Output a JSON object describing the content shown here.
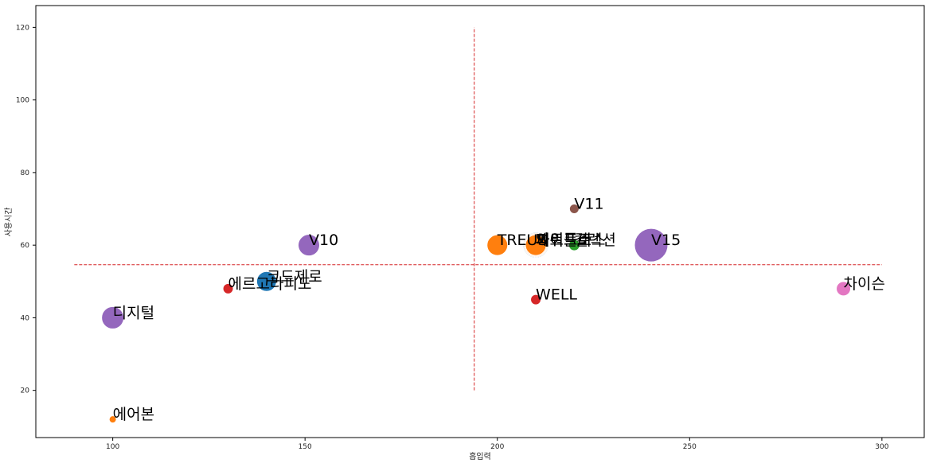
{
  "chart_data": {
    "type": "scatter",
    "xlabel": "흡입력",
    "ylabel": "사용시간",
    "xlim": [
      80,
      311
    ],
    "ylim": [
      7,
      126
    ],
    "xticks": [
      100,
      150,
      200,
      250,
      300
    ],
    "yticks": [
      20,
      40,
      60,
      80,
      100,
      120
    ],
    "grid": false,
    "reference_lines": {
      "vertical_x": 194,
      "vertical_y_range": [
        20,
        120
      ],
      "horizontal_y": 54.6,
      "horizontal_x_range": [
        90,
        300
      ],
      "color": "#d62728"
    },
    "points": [
      {
        "label": "에어본",
        "x": 100,
        "y": 12,
        "size": 9,
        "color": "#ff7f0e"
      },
      {
        "label": "디지털",
        "x": 100,
        "y": 40,
        "size": 28,
        "color": "#9467bd"
      },
      {
        "label": "에르고라피도",
        "x": 130,
        "y": 48,
        "size": 13,
        "color": "#d62728"
      },
      {
        "label": "코드제로",
        "x": 140,
        "y": 50,
        "size": 25,
        "color": "#1f77b4"
      },
      {
        "label": "V10",
        "x": 151,
        "y": 60,
        "size": 27,
        "color": "#9467bd"
      },
      {
        "label": "TREUS",
        "x": 200,
        "y": 60,
        "size": 26,
        "color": "#ff7f0e"
      },
      {
        "label": "파워플러스",
        "x": 210,
        "y": 60,
        "size": 32,
        "color": "#1f77b4"
      },
      {
        "label": "제트",
        "x": 210,
        "y": 60,
        "size": 30,
        "color": "#ff7f0e"
      },
      {
        "label": "파워프로",
        "x": 210,
        "y": 60,
        "size": 28,
        "color": "#ff7f0e"
      },
      {
        "label": "와이드",
        "x": 210,
        "y": 60,
        "size": 26,
        "color": "#ff7f0e"
      },
      {
        "label": "컬렉션",
        "x": 220,
        "y": 60,
        "size": 14,
        "color": "#2ca02c"
      },
      {
        "label": "V11",
        "x": 220,
        "y": 70,
        "size": 12,
        "color": "#8c564b"
      },
      {
        "label": "WELL",
        "x": 210,
        "y": 45,
        "size": 13,
        "color": "#d62728"
      },
      {
        "label": "V15",
        "x": 240,
        "y": 60,
        "size": 42,
        "color": "#9467bd"
      },
      {
        "label": "차이슨",
        "x": 290,
        "y": 48,
        "size": 18,
        "color": "#e377c2"
      }
    ]
  }
}
